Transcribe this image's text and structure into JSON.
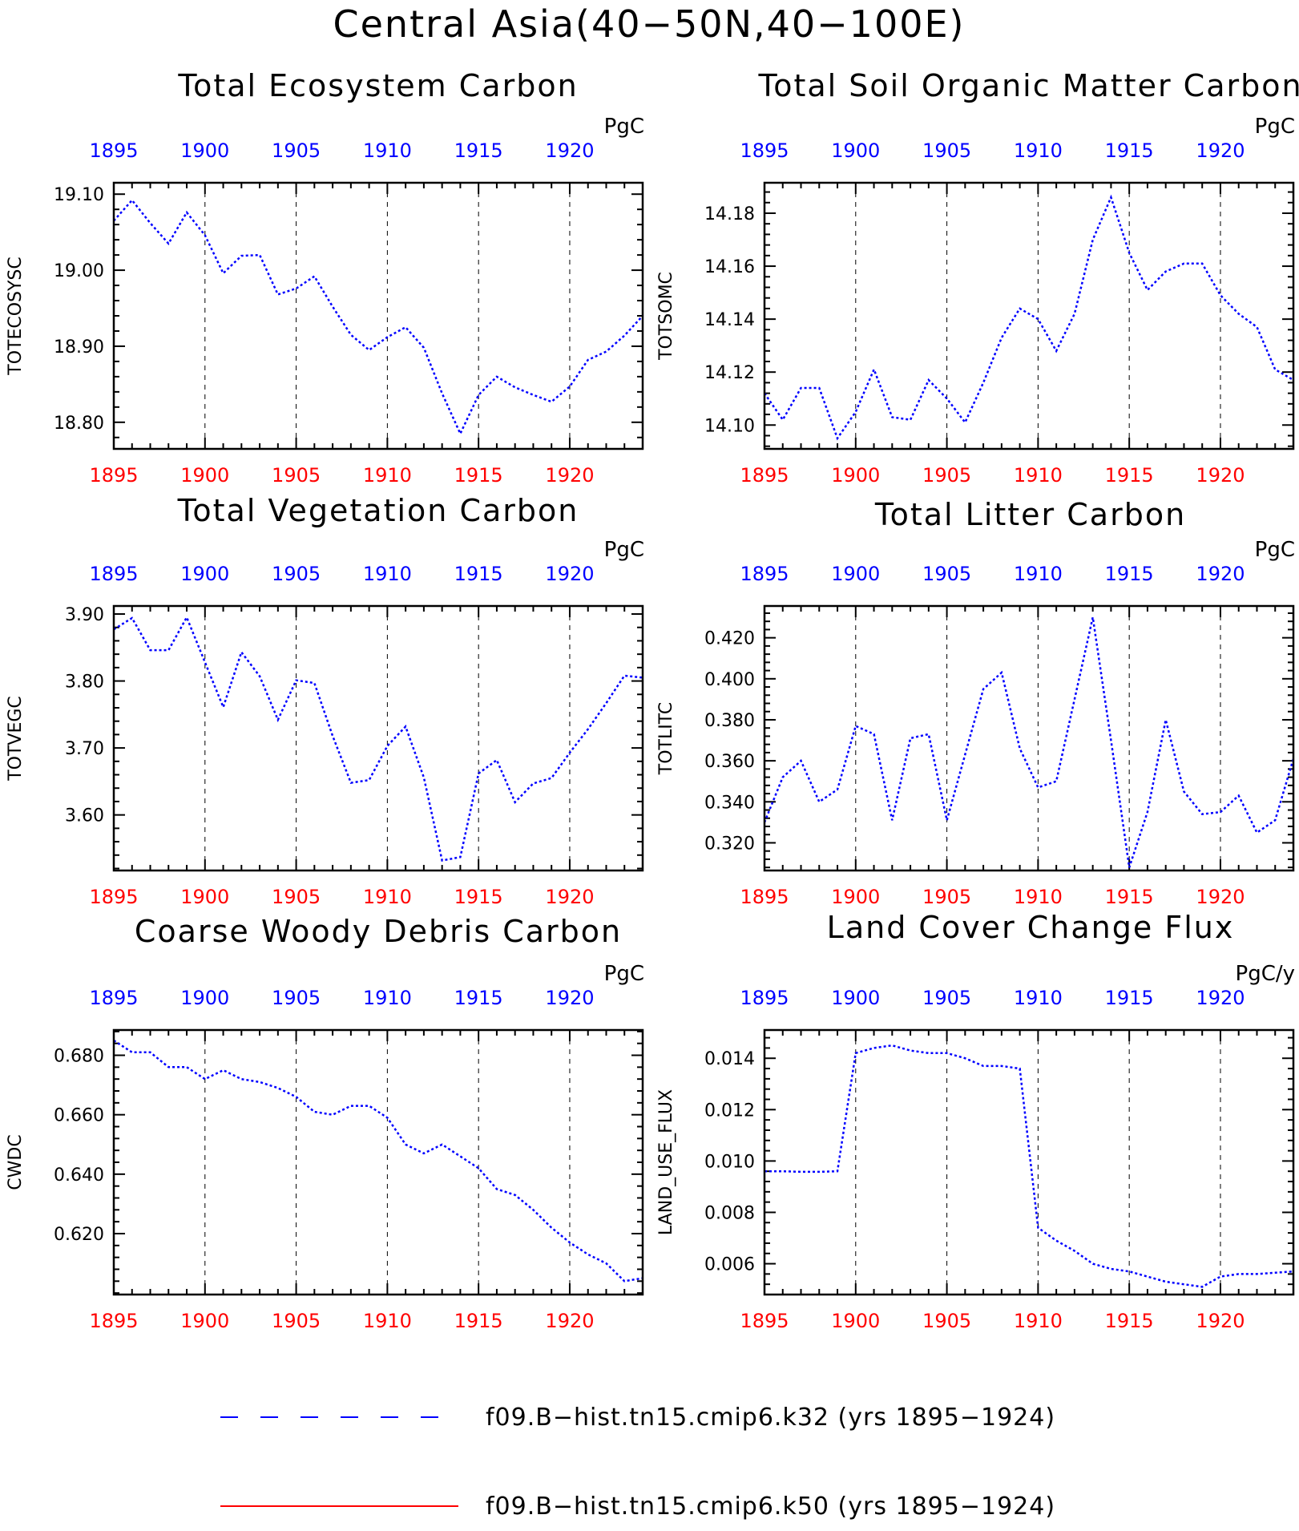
{
  "figure": {
    "title": "Central Asia(40−50N,40−100E)"
  },
  "colors": {
    "top_axis": "#0000ff",
    "bottom_axis": "#ff0000",
    "series_k32": "#0000ff",
    "series_k50": "#ff0000",
    "frame": "#000000"
  },
  "years": [
    1895,
    1896,
    1897,
    1898,
    1899,
    1900,
    1901,
    1902,
    1903,
    1904,
    1905,
    1906,
    1907,
    1908,
    1909,
    1910,
    1911,
    1912,
    1913,
    1914,
    1915,
    1916,
    1917,
    1918,
    1919,
    1920,
    1921,
    1922,
    1923,
    1924
  ],
  "x_ticks": [
    "1895",
    "1900",
    "1905",
    "1910",
    "1915",
    "1920"
  ],
  "legend": [
    {
      "label": "f09.B−hist.tn15.cmip6.k32 (yrs 1895−1924)",
      "style": "dashed",
      "color": "#0000ff"
    },
    {
      "label": "f09.B−hist.tn15.cmip6.k50 (yrs 1895−1924)",
      "style": "solid",
      "color": "#ff0000"
    }
  ],
  "chart_data": [
    {
      "type": "line",
      "title": "Total Ecosystem Carbon",
      "ylabel": "TOTECOSYSC",
      "units": "PgC",
      "xlim": [
        1895,
        1924
      ],
      "ylim": [
        18.765,
        19.115
      ],
      "yticks": [
        "18.80",
        "18.90",
        "19.00",
        "19.10"
      ],
      "grid": "vertical dashed at tick years",
      "series": [
        {
          "values": [
            19.065,
            19.092,
            19.062,
            19.035,
            19.076,
            19.046,
            18.996,
            19.019,
            19.02,
            18.968,
            18.976,
            18.992,
            18.952,
            18.915,
            18.895,
            18.912,
            18.925,
            18.898,
            18.838,
            18.785,
            18.836,
            18.86,
            18.846,
            18.836,
            18.827,
            18.847,
            18.882,
            18.893,
            18.914,
            18.94
          ]
        }
      ]
    },
    {
      "type": "line",
      "title": "Total Soil Organic Matter Carbon",
      "ylabel": "TOTSOMC",
      "units": "PgC",
      "xlim": [
        1895,
        1924
      ],
      "ylim": [
        14.091,
        14.1915
      ],
      "yticks": [
        "14.10",
        "14.12",
        "14.14",
        "14.16",
        "14.18"
      ],
      "grid": "vertical dashed at tick years",
      "series": [
        {
          "values": [
            14.112,
            14.102,
            14.114,
            14.114,
            14.095,
            14.105,
            14.121,
            14.103,
            14.102,
            14.117,
            14.11,
            14.101,
            14.116,
            14.133,
            14.144,
            14.14,
            14.128,
            14.142,
            14.17,
            14.186,
            14.165,
            14.151,
            14.158,
            14.161,
            14.161,
            14.149,
            14.142,
            14.137,
            14.121,
            14.117
          ]
        }
      ]
    },
    {
      "type": "line",
      "title": "Total Vegetation Carbon",
      "ylabel": "TOTVEGC",
      "units": "PgC",
      "xlim": [
        1895,
        1924
      ],
      "ylim": [
        3.517,
        3.912
      ],
      "yticks": [
        "3.60",
        "3.70",
        "3.80",
        "3.90"
      ],
      "grid": "vertical dashed at tick years",
      "series": [
        {
          "values": [
            3.877,
            3.894,
            3.846,
            3.846,
            3.895,
            3.828,
            3.761,
            3.843,
            3.807,
            3.742,
            3.801,
            3.797,
            3.718,
            3.648,
            3.652,
            3.703,
            3.732,
            3.656,
            3.532,
            3.537,
            3.662,
            3.682,
            3.619,
            3.647,
            3.655,
            3.693,
            3.728,
            3.767,
            3.808,
            3.805
          ]
        }
      ]
    },
    {
      "type": "line",
      "title": "Total Litter Carbon",
      "ylabel": "TOTLITC",
      "units": "PgC",
      "xlim": [
        1895,
        1924
      ],
      "ylim": [
        0.3065,
        0.4355
      ],
      "yticks": [
        "0.320",
        "0.340",
        "0.360",
        "0.380",
        "0.400",
        "0.420"
      ],
      "grid": "vertical dashed at tick years",
      "series": [
        {
          "values": [
            0.33,
            0.352,
            0.36,
            0.34,
            0.346,
            0.377,
            0.373,
            0.331,
            0.371,
            0.373,
            0.331,
            0.363,
            0.395,
            0.403,
            0.366,
            0.347,
            0.35,
            0.39,
            0.43,
            0.37,
            0.308,
            0.335,
            0.38,
            0.345,
            0.334,
            0.335,
            0.343,
            0.325,
            0.331,
            0.361
          ]
        }
      ]
    },
    {
      "type": "line",
      "title": "Coarse Woody Debris Carbon",
      "ylabel": "CWDC",
      "units": "PgC",
      "xlim": [
        1895,
        1924
      ],
      "ylim": [
        0.5995,
        0.6885
      ],
      "yticks": [
        "0.620",
        "0.640",
        "0.660",
        "0.680"
      ],
      "grid": "vertical dashed at tick years",
      "series": [
        {
          "values": [
            0.685,
            0.681,
            0.681,
            0.676,
            0.676,
            0.672,
            0.675,
            0.672,
            0.671,
            0.669,
            0.666,
            0.661,
            0.66,
            0.663,
            0.663,
            0.659,
            0.65,
            0.647,
            0.65,
            0.646,
            0.642,
            0.635,
            0.633,
            0.628,
            0.622,
            0.617,
            0.613,
            0.61,
            0.604,
            0.605
          ]
        }
      ]
    },
    {
      "type": "line",
      "title": "Land Cover Change Flux",
      "ylabel": "LAND_USE_FLUX",
      "units": "PgC/y",
      "xlim": [
        1895,
        1924
      ],
      "ylim": [
        0.0048,
        0.0151
      ],
      "yticks": [
        "0.006",
        "0.008",
        "0.010",
        "0.012",
        "0.014"
      ],
      "grid": "vertical dashed at tick years",
      "series": [
        {
          "values": [
            0.0096,
            0.0096,
            0.00958,
            0.00958,
            0.0096,
            0.0142,
            0.0144,
            0.0145,
            0.0143,
            0.0142,
            0.0142,
            0.014,
            0.0137,
            0.0137,
            0.0136,
            0.0074,
            0.0069,
            0.0065,
            0.006,
            0.0058,
            0.0057,
            0.0055,
            0.0053,
            0.0052,
            0.0051,
            0.0055,
            0.0056,
            0.0056,
            0.00565,
            0.0057
          ]
        }
      ]
    }
  ]
}
